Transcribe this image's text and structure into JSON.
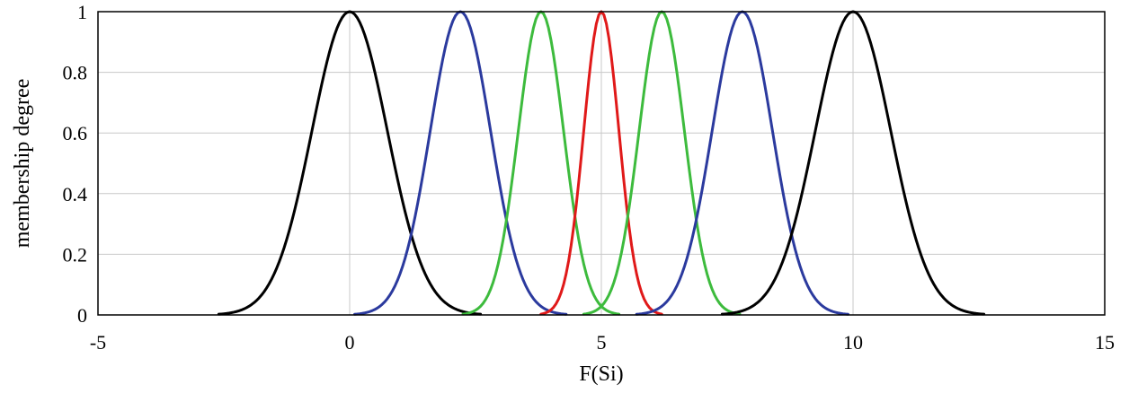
{
  "chart_data": {
    "type": "line",
    "title": "",
    "xlabel": "F(Si)",
    "ylabel": "membership degree",
    "xlim": [
      -5,
      15
    ],
    "ylim": [
      0,
      1
    ],
    "x_ticks": [
      -5,
      0,
      5,
      10,
      15
    ],
    "y_ticks": [
      0,
      0.2,
      0.4,
      0.6,
      0.8,
      1
    ],
    "x_tick_labels": [
      "-5",
      "0",
      "5",
      "10",
      "15"
    ],
    "y_tick_labels": [
      "0",
      "0.2",
      "0.4",
      "0.6",
      "0.8",
      "1"
    ],
    "grid": true,
    "legend": "none",
    "series": [
      {
        "color": "#000000",
        "center": 0,
        "sigma": 0.75
      },
      {
        "color": "#2b3a9e",
        "center": 2.2,
        "sigma": 0.6
      },
      {
        "color": "#3dbb3d",
        "center": 3.8,
        "sigma": 0.45
      },
      {
        "color": "#e01919",
        "center": 5,
        "sigma": 0.35
      },
      {
        "color": "#3dbb3d",
        "center": 6.2,
        "sigma": 0.45
      },
      {
        "color": "#2b3a9e",
        "center": 7.8,
        "sigma": 0.6
      },
      {
        "color": "#000000",
        "center": 10,
        "sigma": 0.75
      }
    ]
  }
}
